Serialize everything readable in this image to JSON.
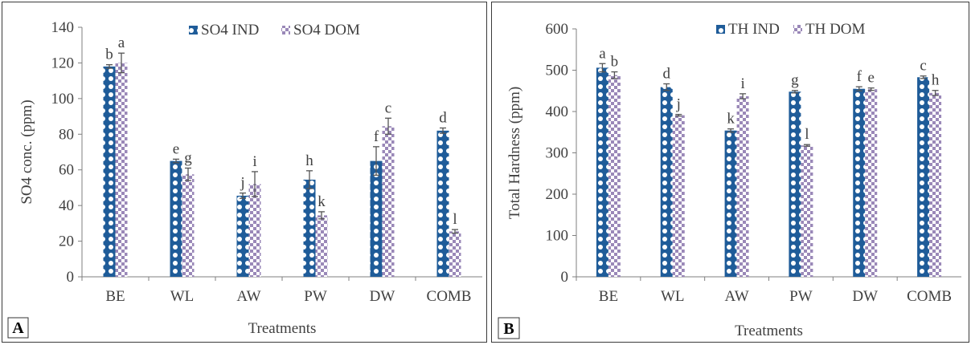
{
  "colors": {
    "ind": "#1f5c99",
    "dom": "#9a88b8",
    "axis": "#7f7f7f",
    "error": "#555555"
  },
  "chart_data": [
    {
      "type": "bar",
      "panel_label": "A",
      "categories": [
        "BE",
        "WL",
        "AW",
        "PW",
        "DW",
        "COMB"
      ],
      "series": [
        {
          "name": "SO4 IND",
          "values": [
            118,
            65,
            45.5,
            54.5,
            65,
            82
          ],
          "errors": [
            1,
            1,
            1.5,
            5,
            8,
            1.5
          ],
          "letters": [
            "b",
            "e",
            "j",
            "h",
            "f",
            "d"
          ]
        },
        {
          "name": "SO4 DOM",
          "values": [
            120,
            57.5,
            52,
            34.5,
            84.5,
            25.5
          ],
          "errors": [
            5.5,
            3.5,
            7,
            2,
            4.5,
            1
          ],
          "letters": [
            "a",
            "g",
            "i",
            "k",
            "c",
            "l"
          ]
        }
      ],
      "xlabel": "Treatments",
      "ylabel": "SO4 conc. (ppm)",
      "ylim": [
        0,
        140
      ],
      "yticks": [
        0,
        20,
        40,
        60,
        80,
        100,
        120,
        140
      ],
      "grid": false,
      "legend": "top-center"
    },
    {
      "type": "bar",
      "panel_label": "B",
      "categories": [
        "BE",
        "WL",
        "AW",
        "PW",
        "DW",
        "COMB"
      ],
      "series": [
        {
          "name": "TH IND",
          "values": [
            506,
            459,
            354,
            448,
            455,
            483
          ],
          "errors": [
            10,
            8,
            4,
            3,
            5,
            3
          ],
          "letters": [
            "a",
            "d",
            "k",
            "g",
            "f",
            "c"
          ]
        },
        {
          "name": "TH DOM",
          "values": [
            488,
            391,
            437,
            318,
            454,
            445
          ],
          "errors": [
            8,
            2,
            6,
            2,
            3,
            6
          ],
          "letters": [
            "b",
            "j",
            "i",
            "l",
            "e",
            "h"
          ]
        }
      ],
      "xlabel": "Treatments",
      "ylabel": "Total Hardness (ppm)",
      "ylim": [
        0,
        600
      ],
      "yticks": [
        0,
        100,
        200,
        300,
        400,
        500,
        600
      ],
      "grid": false,
      "legend": "top-center"
    }
  ]
}
